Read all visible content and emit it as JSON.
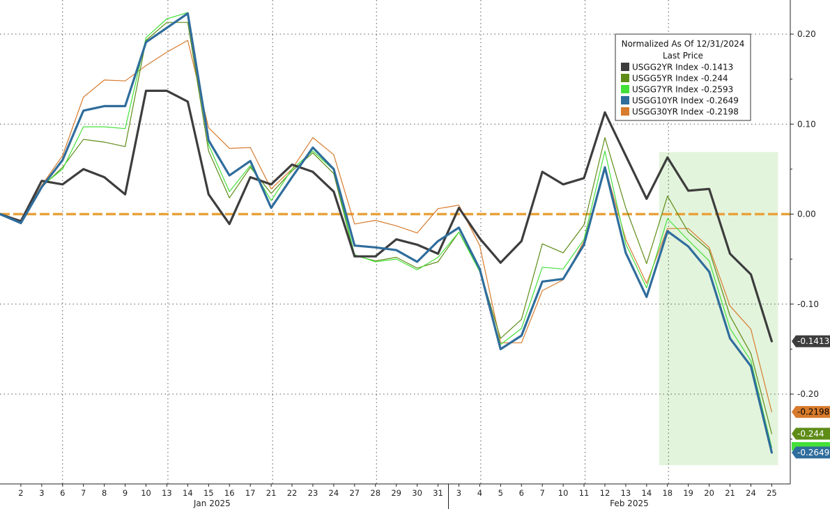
{
  "chart_data": {
    "type": "line",
    "title": "",
    "xlabel": "",
    "ylabel": "",
    "ylim": [
      -0.3,
      0.24
    ],
    "y_ticks": [
      -0.2,
      -0.1,
      0.0,
      0.1,
      0.2
    ],
    "y_tick_labels": [
      "-0.20",
      "-0.10",
      "0.00",
      "0.10",
      "0.20"
    ],
    "grid": true,
    "legend_position": "top-right",
    "legend_title_line1": "Normalized As Of 12/31/2024",
    "legend_title_line2": "Last Price",
    "x": [
      "12/31",
      "1/2",
      "1/3",
      "1/6",
      "1/7",
      "1/8",
      "1/9",
      "1/10",
      "1/13",
      "1/14",
      "1/15",
      "1/16",
      "1/17",
      "1/21",
      "1/22",
      "1/23",
      "1/24",
      "1/27",
      "1/28",
      "1/29",
      "1/30",
      "1/31",
      "2/3",
      "2/4",
      "2/5",
      "2/6",
      "2/7",
      "2/10",
      "2/11",
      "2/12",
      "2/13",
      "2/14",
      "2/18",
      "2/19",
      "2/20",
      "2/21",
      "2/24",
      "2/25"
    ],
    "x_tick_labels": [
      "2",
      "3",
      "6",
      "7",
      "8",
      "9",
      "10",
      "13",
      "14",
      "15",
      "16",
      "17",
      "21",
      "22",
      "23",
      "24",
      "27",
      "28",
      "29",
      "30",
      "31",
      "3",
      "4",
      "5",
      "6",
      "7",
      "10",
      "11",
      "12",
      "13",
      "14",
      "18",
      "19",
      "20",
      "21",
      "24",
      "25"
    ],
    "month_labels": [
      {
        "label": "Jan 2025",
        "center_index": 9.5
      },
      {
        "label": "Feb 2025",
        "center_index": 29.5
      }
    ],
    "month_separator_index": 21.5,
    "shaded_region": {
      "from_index": 31.6,
      "to_index": 37.3,
      "ymin": -0.279,
      "ymax": 0.069,
      "color": "#e3f4dc"
    },
    "zero_line_color": "#e8a23a",
    "series": [
      {
        "name": "USGG2YR Index",
        "last": "-0.1413",
        "color": "#3d3d3d",
        "width": 3.2,
        "values": [
          0,
          -0.008,
          0.037,
          0.033,
          0.05,
          0.041,
          0.022,
          0.137,
          0.137,
          0.125,
          0.022,
          -0.011,
          0.041,
          0.033,
          0.055,
          0.047,
          0.025,
          -0.047,
          -0.047,
          -0.028,
          -0.034,
          -0.044,
          0.007,
          -0.027,
          -0.054,
          -0.03,
          0.047,
          0.033,
          0.04,
          0.113,
          0.065,
          0.017,
          0.063,
          0.026,
          0.028,
          -0.044,
          -0.067,
          -0.1413
        ]
      },
      {
        "name": "USGG5YR Index",
        "last": "-0.244",
        "color": "#5e8c17",
        "width": 1.2,
        "values": [
          0,
          -0.008,
          0.03,
          0.052,
          0.083,
          0.08,
          0.075,
          0.193,
          0.213,
          0.213,
          0.07,
          0.018,
          0.052,
          0.023,
          0.048,
          0.068,
          0.045,
          -0.046,
          -0.052,
          -0.048,
          -0.06,
          -0.053,
          -0.02,
          -0.062,
          -0.138,
          -0.117,
          -0.033,
          -0.043,
          -0.012,
          0.085,
          0.007,
          -0.055,
          0.02,
          -0.02,
          -0.04,
          -0.113,
          -0.155,
          -0.244
        ]
      },
      {
        "name": "USGG7YR Index",
        "last": "-0.2593",
        "color": "#44e03a",
        "width": 1.2,
        "values": [
          0,
          -0.009,
          0.031,
          0.05,
          0.097,
          0.097,
          0.095,
          0.196,
          0.217,
          0.224,
          0.077,
          0.025,
          0.054,
          0.015,
          0.05,
          0.07,
          0.049,
          -0.045,
          -0.053,
          -0.05,
          -0.062,
          -0.048,
          -0.02,
          -0.064,
          -0.145,
          -0.127,
          -0.059,
          -0.061,
          -0.028,
          0.07,
          -0.033,
          -0.082,
          -0.005,
          -0.029,
          -0.052,
          -0.127,
          -0.163,
          -0.2593
        ]
      },
      {
        "name": "USGG10YR Index",
        "last": "-0.2649",
        "color": "#2f6d9c",
        "width": 3.2,
        "values": [
          0,
          -0.01,
          0.03,
          0.06,
          0.115,
          0.12,
          0.12,
          0.191,
          0.207,
          0.223,
          0.082,
          0.043,
          0.059,
          0.007,
          0.041,
          0.074,
          0.05,
          -0.035,
          -0.037,
          -0.04,
          -0.053,
          -0.03,
          -0.015,
          -0.061,
          -0.15,
          -0.135,
          -0.075,
          -0.072,
          -0.034,
          0.052,
          -0.043,
          -0.092,
          -0.019,
          -0.036,
          -0.064,
          -0.138,
          -0.169,
          -0.2649
        ]
      },
      {
        "name": "USGG30YR Index",
        "last": "-0.2198",
        "color": "#d77b2d",
        "width": 1.2,
        "values": [
          0,
          -0.007,
          0.032,
          0.065,
          0.13,
          0.149,
          0.148,
          0.165,
          0.18,
          0.193,
          0.096,
          0.073,
          0.074,
          0.028,
          0.05,
          0.085,
          0.066,
          -0.011,
          -0.007,
          -0.013,
          -0.021,
          0.006,
          0.01,
          -0.035,
          -0.143,
          -0.143,
          -0.085,
          -0.073,
          -0.03,
          0.053,
          -0.028,
          -0.077,
          -0.016,
          -0.016,
          -0.037,
          -0.102,
          -0.128,
          -0.2198
        ]
      }
    ],
    "end_labels": [
      {
        "text": "-0.1413",
        "value": -0.1413,
        "bg": "#3d3d3d",
        "fg": "#ffffff"
      },
      {
        "text": "-0.2198",
        "value": -0.2198,
        "bg": "#d77b2d",
        "fg": "#000000"
      },
      {
        "text": "-0.244",
        "value": -0.244,
        "bg": "#5e8c17",
        "fg": "#ffffff"
      },
      {
        "text": "-0.2649",
        "value": -0.2649,
        "bg": "#2f6d9c",
        "fg": "#ffffff",
        "under_color": "#44e03a"
      }
    ]
  }
}
